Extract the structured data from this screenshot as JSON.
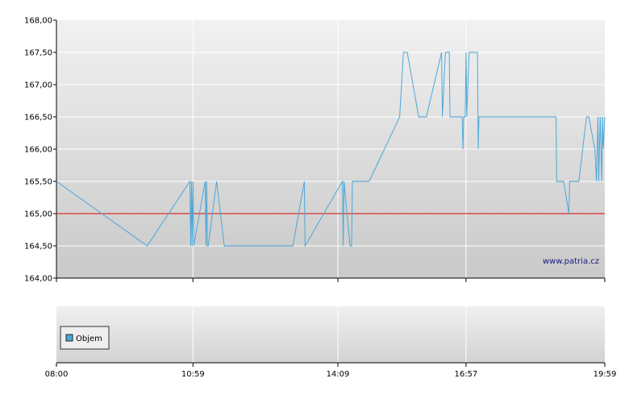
{
  "chart_data": [
    {
      "type": "line",
      "ylim": [
        164.0,
        168.0
      ],
      "yticks": [
        "168,00",
        "167,50",
        "167,00",
        "166,50",
        "166,00",
        "165,50",
        "165,00",
        "164,50",
        "164,00"
      ],
      "reference_line": 165.0,
      "watermark": "www.patria.cz",
      "line_color": "#4aa8d8",
      "reference_color": "#e00000",
      "points": [
        [
          "08:00",
          165.5
        ],
        [
          "09:59",
          164.5
        ],
        [
          "10:55",
          165.5
        ],
        [
          "10:56",
          164.5
        ],
        [
          "10:57",
          165.5
        ],
        [
          "10:58",
          164.5
        ],
        [
          "10:59",
          165.5
        ],
        [
          "11:00",
          164.5
        ],
        [
          "11:15",
          165.5
        ],
        [
          "11:16",
          164.5
        ],
        [
          "11:17",
          165.5
        ],
        [
          "11:18",
          164.5
        ],
        [
          "11:19",
          164.5
        ],
        [
          "11:30",
          165.5
        ],
        [
          "11:40",
          164.5
        ],
        [
          "13:10",
          164.5
        ],
        [
          "13:25",
          165.5
        ],
        [
          "13:26",
          164.5
        ],
        [
          "14:15",
          165.5
        ],
        [
          "14:16",
          164.5
        ],
        [
          "14:17",
          165.5
        ],
        [
          "14:25",
          164.5
        ],
        [
          "14:27",
          164.5
        ],
        [
          "14:28",
          165.5
        ],
        [
          "14:50",
          165.5
        ],
        [
          "15:30",
          166.5
        ],
        [
          "15:35",
          167.5
        ],
        [
          "15:40",
          167.5
        ],
        [
          "15:55",
          166.5
        ],
        [
          "16:05",
          166.5
        ],
        [
          "16:25",
          167.5
        ],
        [
          "16:26",
          166.5
        ],
        [
          "16:30",
          167.5
        ],
        [
          "16:35",
          167.5
        ],
        [
          "16:36",
          166.5
        ],
        [
          "16:52",
          166.5
        ],
        [
          "16:53",
          166.0
        ],
        [
          "16:54",
          166.5
        ],
        [
          "16:56",
          166.5
        ],
        [
          "16:57",
          167.5
        ],
        [
          "16:58",
          166.5
        ],
        [
          "17:01",
          167.5
        ],
        [
          "17:12",
          167.5
        ],
        [
          "17:13",
          166.0
        ],
        [
          "17:14",
          166.5
        ],
        [
          "18:55",
          166.5
        ],
        [
          "18:56",
          165.5
        ],
        [
          "19:05",
          165.5
        ],
        [
          "19:12",
          165.0
        ],
        [
          "19:13",
          165.5
        ],
        [
          "19:25",
          165.5
        ],
        [
          "19:35",
          166.5
        ],
        [
          "19:38",
          166.5
        ],
        [
          "19:46",
          166.0
        ],
        [
          "19:48",
          165.5
        ],
        [
          "19:50",
          166.5
        ],
        [
          "19:51",
          165.5
        ],
        [
          "19:53",
          166.5
        ],
        [
          "19:55",
          165.5
        ],
        [
          "19:56",
          166.5
        ],
        [
          "19:57",
          166.0
        ],
        [
          "19:59",
          166.5
        ]
      ]
    },
    {
      "type": "bar",
      "series": [
        {
          "name": "Objem",
          "values": []
        }
      ],
      "xticks": [
        "08:00",
        "10:59",
        "14:09",
        "16:57",
        "19:59"
      ],
      "legend_placement": "bottom-left"
    }
  ]
}
